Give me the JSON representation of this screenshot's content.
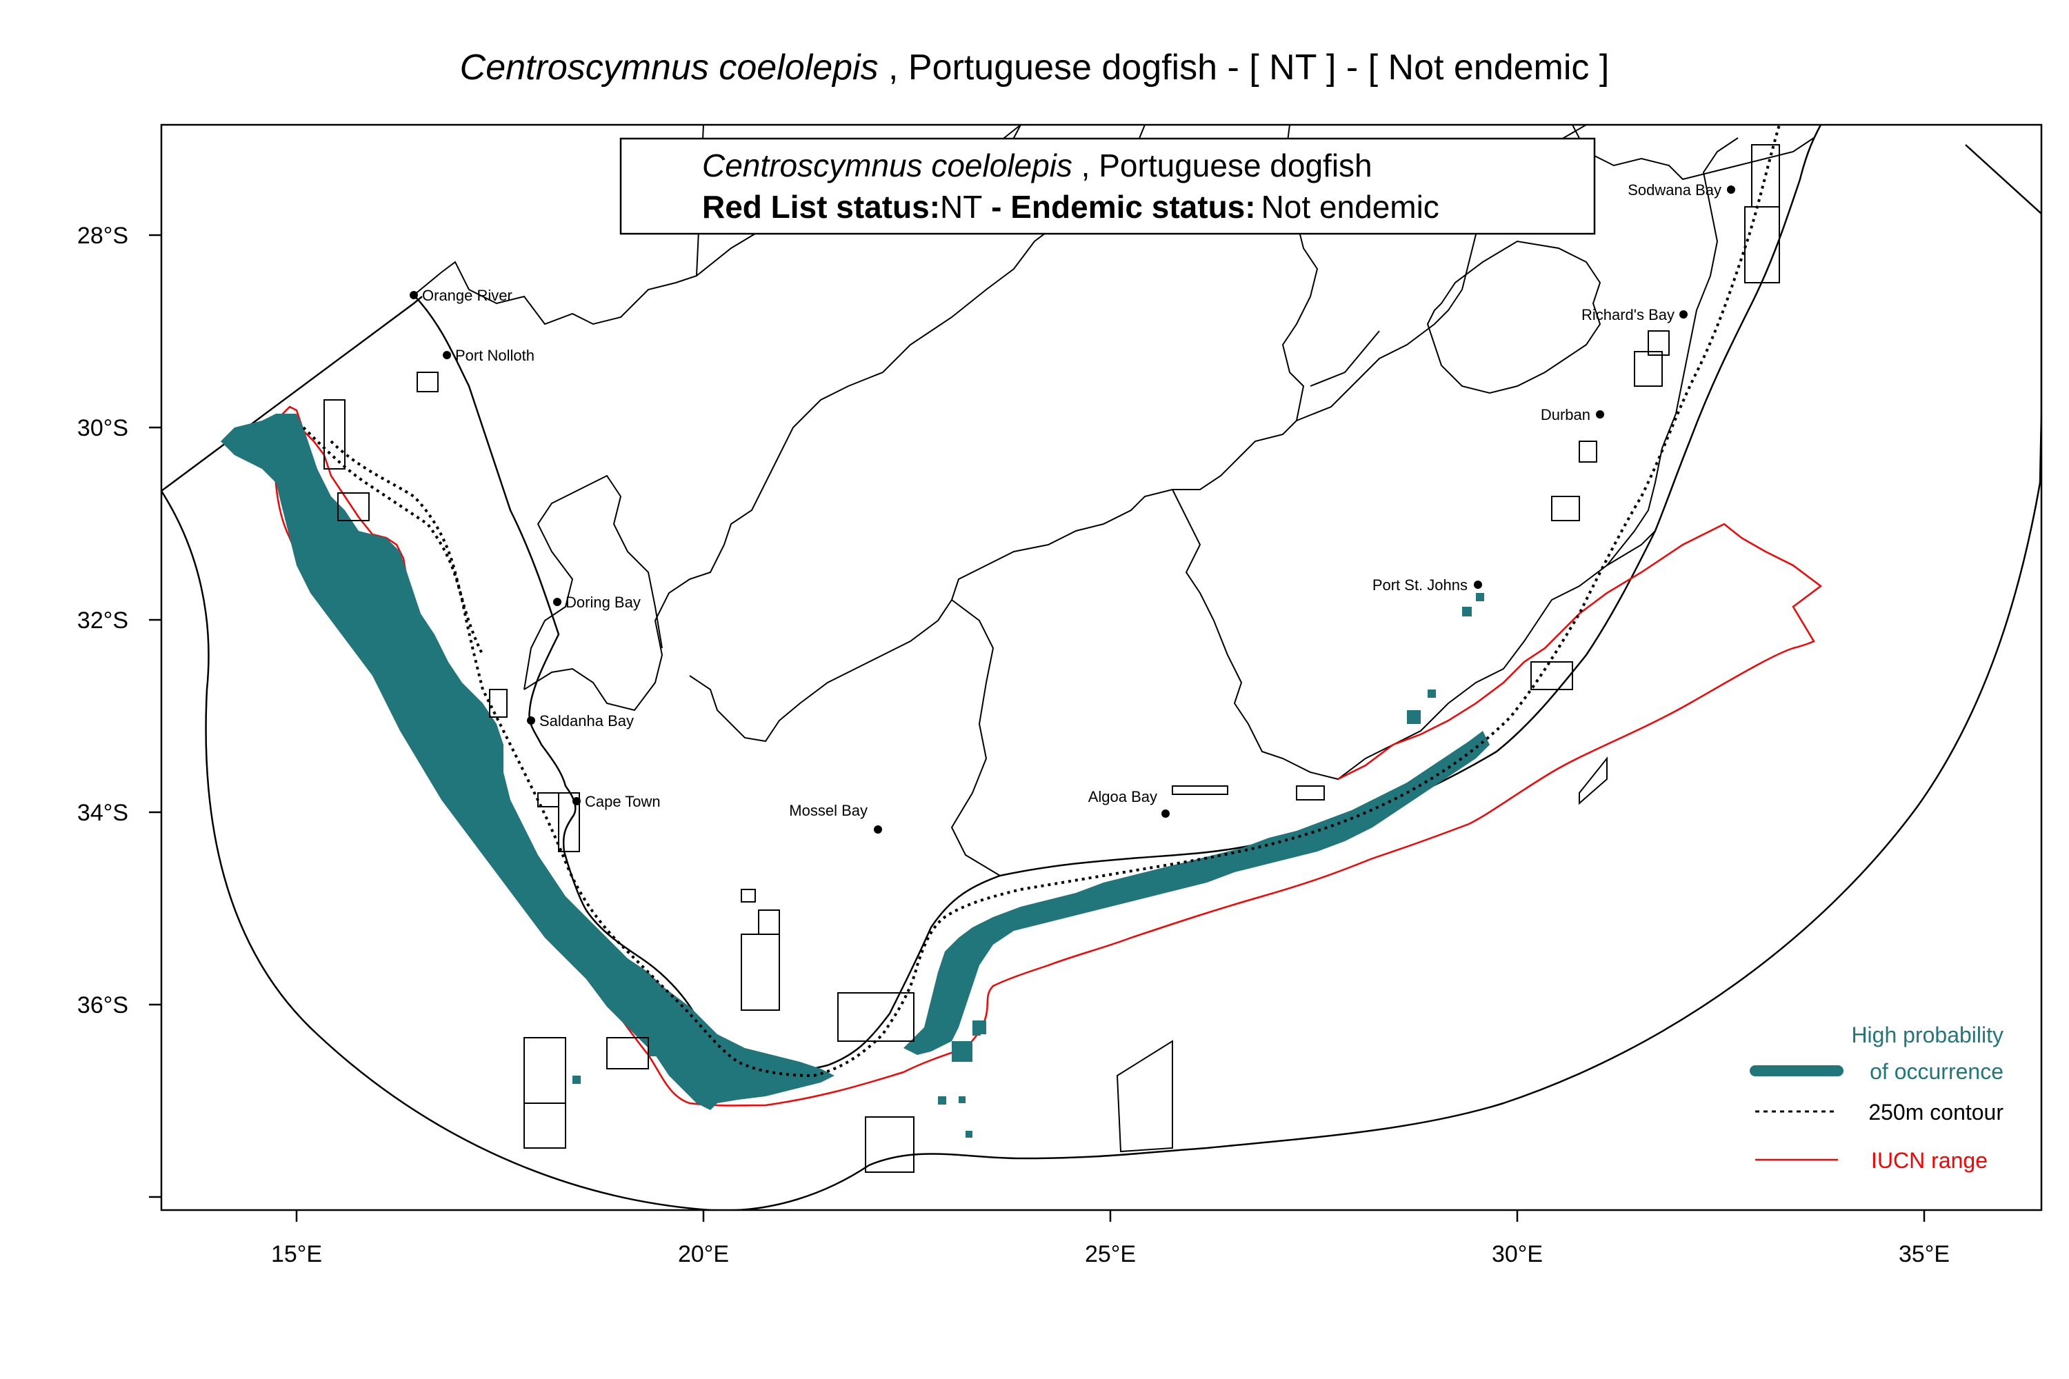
{
  "title": {
    "species": "Centroscymnus coelolepis",
    "rest": " , Portuguese dogfish  - [ NT ] - [ Not endemic ]"
  },
  "info_box": {
    "species": "Centroscymnus coelolepis",
    "common": " , Portuguese dogfish",
    "status_label": "Red List status:",
    "status_value": "NT",
    "endemic_label": " - Endemic status:",
    "endemic_value": "Not endemic"
  },
  "axes": {
    "x_ticks": [
      "15°E",
      "20°E",
      "25°E",
      "30°E",
      "35°E"
    ],
    "y_ticks": [
      "28°S",
      "30°S",
      "32°S",
      "34°S",
      "36°S"
    ]
  },
  "places": [
    {
      "name": "Orange River"
    },
    {
      "name": "Port Nolloth"
    },
    {
      "name": "Doring Bay"
    },
    {
      "name": "Saldanha Bay"
    },
    {
      "name": "Cape Town"
    },
    {
      "name": "Mossel Bay"
    },
    {
      "name": "Algoa Bay"
    },
    {
      "name": "Port St. Johns"
    },
    {
      "name": "Durban"
    },
    {
      "name": "Richard's Bay"
    },
    {
      "name": "Sodwana Bay"
    }
  ],
  "legend": {
    "high_prob_line1": "High probability",
    "high_prob_line2": "of occurrence",
    "contour": "250m contour",
    "iucn": "IUCN range"
  },
  "colors": {
    "occurrence": "#20767A",
    "iucn_range": "#FF0000",
    "contour": "#000000",
    "boundary": "#000000"
  }
}
